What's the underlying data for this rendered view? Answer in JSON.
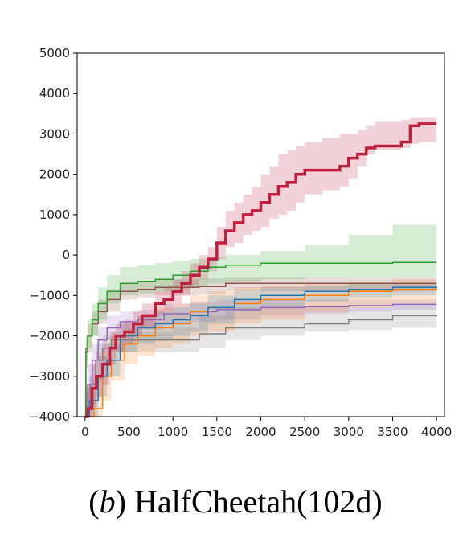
{
  "caption": {
    "letter": "b",
    "text": "HalfCheetah(102d)"
  },
  "chart_data": {
    "type": "line",
    "xlabel": "",
    "ylabel": "",
    "xlim": [
      -90,
      4090
    ],
    "ylim": [
      -4000,
      5000
    ],
    "x_ticks": [
      0,
      500,
      1000,
      1500,
      2000,
      2500,
      3000,
      3500,
      4000
    ],
    "y_ticks": [
      -4000,
      -3000,
      -2000,
      -1000,
      0,
      1000,
      2000,
      3000,
      4000,
      5000
    ],
    "x_tick_labels": [
      "0",
      "500",
      "1000",
      "1500",
      "2000",
      "2500",
      "3000",
      "3500",
      "4000"
    ],
    "y_tick_labels": [
      "−4000",
      "−3000",
      "−2000",
      "−1000",
      "0",
      "1000",
      "2000",
      "3000",
      "4000",
      "5000"
    ],
    "grid": false,
    "legend": "none",
    "series": [
      {
        "color": "#7f7f7f",
        "width": 1.5,
        "step": true,
        "x": [
          0,
          20,
          60,
          120,
          200,
          300,
          500,
          700,
          1000,
          1300,
          1600,
          2000,
          2500,
          3000,
          3500,
          4000
        ],
        "y": [
          -4000,
          -3800,
          -3200,
          -2600,
          -2300,
          -2100,
          -2100,
          -2100,
          -2100,
          -1950,
          -1800,
          -1800,
          -1700,
          -1600,
          -1500,
          -1520
        ],
        "band_upper": [
          -3500,
          -3200,
          -2700,
          -2200,
          -2000,
          -1900,
          -1900,
          -1900,
          -1800,
          -1500,
          -1300,
          -1300,
          -1300,
          -1300,
          -1200,
          -1200
        ],
        "band_lower": [
          -4000,
          -4000,
          -3700,
          -3100,
          -2700,
          -2400,
          -2400,
          -2400,
          -2400,
          -2300,
          -2100,
          -2000,
          -1900,
          -1850,
          -1800,
          -1800
        ]
      },
      {
        "color": "#9467bd",
        "width": 1.5,
        "step": true,
        "x": [
          0,
          30,
          80,
          150,
          250,
          400,
          600,
          900,
          1200,
          1500,
          2000,
          2500,
          3000,
          3500,
          4000
        ],
        "y": [
          -4000,
          -3200,
          -2600,
          -2100,
          -1800,
          -1650,
          -1600,
          -1450,
          -1400,
          -1350,
          -1300,
          -1280,
          -1250,
          -1220,
          -1220
        ],
        "band_upper": [
          -3500,
          -2700,
          -2200,
          -1800,
          -1500,
          -1400,
          -1350,
          -1200,
          -1150,
          -1100,
          -1100,
          -1100,
          -1100,
          -1100,
          -1100
        ],
        "band_lower": [
          -4000,
          -3700,
          -3000,
          -2400,
          -2100,
          -1900,
          -1850,
          -1700,
          -1650,
          -1600,
          -1500,
          -1450,
          -1400,
          -1350,
          -1350
        ]
      },
      {
        "color": "#ff7f0e",
        "width": 1.5,
        "step": true,
        "x": [
          0,
          100,
          200,
          300,
          450,
          600,
          800,
          1000,
          1200,
          1400,
          1700,
          2000,
          2500,
          3000,
          3500,
          4000
        ],
        "y": [
          -4000,
          -3800,
          -3000,
          -2600,
          -2200,
          -2000,
          -1800,
          -1700,
          -1400,
          -1300,
          -1200,
          -1100,
          -1000,
          -900,
          -850,
          -800
        ],
        "band_upper": [
          -3200,
          -3000,
          -2400,
          -2000,
          -1700,
          -1500,
          -1300,
          -1200,
          -1000,
          -900,
          -800,
          -750,
          -700,
          -650,
          -600,
          -600
        ],
        "band_lower": [
          -4000,
          -4000,
          -3600,
          -3100,
          -2700,
          -2500,
          -2300,
          -2200,
          -2000,
          -1900,
          -1700,
          -1600,
          -1400,
          -1300,
          -1200,
          -1100
        ]
      },
      {
        "color": "#1f77b4",
        "width": 1.5,
        "step": true,
        "x": [
          0,
          50,
          150,
          250,
          400,
          600,
          800,
          1000,
          1200,
          1400,
          1700,
          2000,
          2500,
          3000,
          3500,
          4000
        ],
        "y": [
          -4000,
          -3600,
          -3000,
          -2600,
          -2000,
          -1800,
          -1700,
          -1600,
          -1500,
          -1300,
          -1100,
          -1000,
          -900,
          -850,
          -800,
          -780
        ],
        "band_upper": [
          -3300,
          -3000,
          -2500,
          -2200,
          -1700,
          -1500,
          -1400,
          -1300,
          -1200,
          -1000,
          -900,
          -800,
          -750,
          -700,
          -680,
          -680
        ],
        "band_lower": [
          -4000,
          -4000,
          -3500,
          -3000,
          -2400,
          -2200,
          -2100,
          -2000,
          -1900,
          -1700,
          -1400,
          -1300,
          -1150,
          -1050,
          -1000,
          -950
        ]
      },
      {
        "color": "#8c564b",
        "width": 1.5,
        "step": true,
        "x": [
          0,
          10,
          30,
          80,
          150,
          250,
          400,
          600,
          800,
          1000,
          1300,
          1600,
          2000,
          2500,
          3000,
          3500,
          4000
        ],
        "y": [
          -4000,
          -2400,
          -2000,
          -1700,
          -1400,
          -1100,
          -900,
          -850,
          -800,
          -800,
          -780,
          -700,
          -700,
          -700,
          -700,
          -700,
          -700
        ],
        "band_upper": [
          -3500,
          -2100,
          -1700,
          -1400,
          -1100,
          -850,
          -700,
          -650,
          -600,
          -600,
          -580,
          -550,
          -550,
          -550,
          -550,
          -550,
          -550
        ],
        "band_lower": [
          -4000,
          -2800,
          -2400,
          -2000,
          -1700,
          -1400,
          -1100,
          -1050,
          -1000,
          -1000,
          -980,
          -900,
          -900,
          -900,
          -900,
          -900,
          -900
        ]
      },
      {
        "color": "#2ca02c",
        "width": 1.5,
        "step": true,
        "x": [
          0,
          10,
          30,
          80,
          150,
          250,
          400,
          600,
          800,
          1000,
          1200,
          1400,
          1600,
          2000,
          2500,
          3000,
          3500,
          4000
        ],
        "y": [
          -4000,
          -2300,
          -2000,
          -1600,
          -1200,
          -900,
          -700,
          -650,
          -600,
          -500,
          -400,
          -300,
          -250,
          -200,
          -200,
          -200,
          -180,
          -180
        ],
        "band_upper": [
          -3300,
          -2000,
          -1600,
          -1200,
          -800,
          -500,
          -300,
          -250,
          -200,
          -150,
          -100,
          -50,
          0,
          100,
          250,
          500,
          750,
          850
        ],
        "band_lower": [
          -4000,
          -2600,
          -2300,
          -2000,
          -1600,
          -1200,
          -1000,
          -950,
          -900,
          -850,
          -800,
          -700,
          -650,
          -600,
          -550,
          -550,
          -550,
          -550
        ]
      },
      {
        "color": "#c0203f",
        "width": 3.5,
        "step": true,
        "x": [
          0,
          30,
          80,
          130,
          200,
          280,
          350,
          450,
          550,
          650,
          800,
          900,
          1000,
          1100,
          1200,
          1300,
          1400,
          1500,
          1600,
          1700,
          1800,
          1900,
          2000,
          2100,
          2200,
          2300,
          2400,
          2500,
          2700,
          2900,
          3000,
          3100,
          3200,
          3300,
          3500,
          3600,
          3700,
          3800,
          4000
        ],
        "y": [
          -4000,
          -3800,
          -3300,
          -3000,
          -2700,
          -2300,
          -2000,
          -1900,
          -1700,
          -1500,
          -1200,
          -1100,
          -900,
          -700,
          -500,
          -300,
          -100,
          300,
          600,
          800,
          1000,
          1100,
          1300,
          1500,
          1700,
          1800,
          2000,
          2100,
          2100,
          2200,
          2400,
          2500,
          2650,
          2700,
          2700,
          2800,
          3200,
          3250,
          3250
        ],
        "band_upper": [
          -3400,
          -3200,
          -2700,
          -2400,
          -2200,
          -1900,
          -1700,
          -1600,
          -1400,
          -1200,
          -900,
          -800,
          -600,
          -400,
          -200,
          0,
          200,
          700,
          1100,
          1300,
          1500,
          1700,
          2000,
          2200,
          2500,
          2600,
          2700,
          2800,
          2900,
          3000,
          3000,
          3100,
          3200,
          3300,
          3300,
          3350,
          3400,
          3400,
          3400
        ],
        "band_lower": [
          -4000,
          -4000,
          -3800,
          -3500,
          -3200,
          -2700,
          -2400,
          -2200,
          -2000,
          -1800,
          -1500,
          -1400,
          -1200,
          -1000,
          -800,
          -600,
          -400,
          -100,
          200,
          300,
          500,
          600,
          700,
          900,
          1000,
          1100,
          1300,
          1500,
          1600,
          1700,
          1900,
          2200,
          2500,
          2600,
          2600,
          2650,
          2750,
          2800,
          2800
        ]
      }
    ]
  }
}
